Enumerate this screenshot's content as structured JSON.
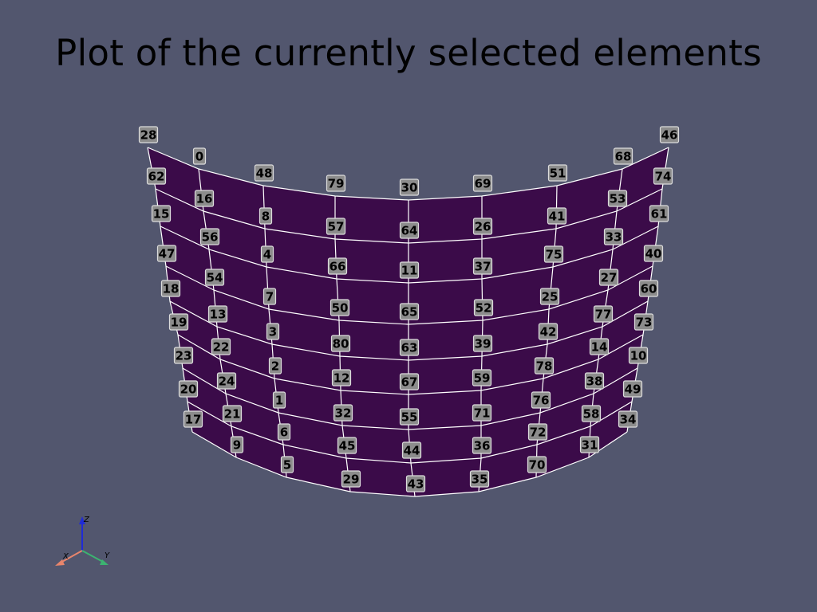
{
  "title": "Plot of the currently selected elements",
  "colors": {
    "background": "#52566e",
    "surface": "#3b0b49",
    "mesh_lines": "#ffffff",
    "label_bg": "#8c8c8c",
    "axis_x": "#e8856c",
    "axis_y": "#3cb371",
    "axis_z": "#1f2bd6"
  },
  "grid_labels": [
    [
      "28",
      "0",
      "48",
      "79",
      "30",
      "69",
      "51",
      "68",
      "46"
    ],
    [
      "62",
      "16",
      "8",
      "57",
      "64",
      "26",
      "41",
      "53",
      "74"
    ],
    [
      "15",
      "56",
      "4",
      "66",
      "11",
      "37",
      "75",
      "33",
      "61"
    ],
    [
      "47",
      "54",
      "7",
      "50",
      "65",
      "52",
      "25",
      "27",
      "40"
    ],
    [
      "18",
      "13",
      "3",
      "80",
      "63",
      "39",
      "42",
      "77",
      "60"
    ],
    [
      "19",
      "22",
      "2",
      "12",
      "67",
      "59",
      "78",
      "14",
      "73"
    ],
    [
      "23",
      "24",
      "1",
      "32",
      "55",
      "71",
      "76",
      "38",
      "10"
    ],
    [
      "20",
      "21",
      "6",
      "45",
      "44",
      "36",
      "72",
      "58",
      "49"
    ],
    [
      "17",
      "9",
      "5",
      "29",
      "43",
      "35",
      "70",
      "31",
      "34"
    ]
  ],
  "axes": {
    "x_label": "X",
    "y_label": "Y",
    "z_label": "Z"
  }
}
